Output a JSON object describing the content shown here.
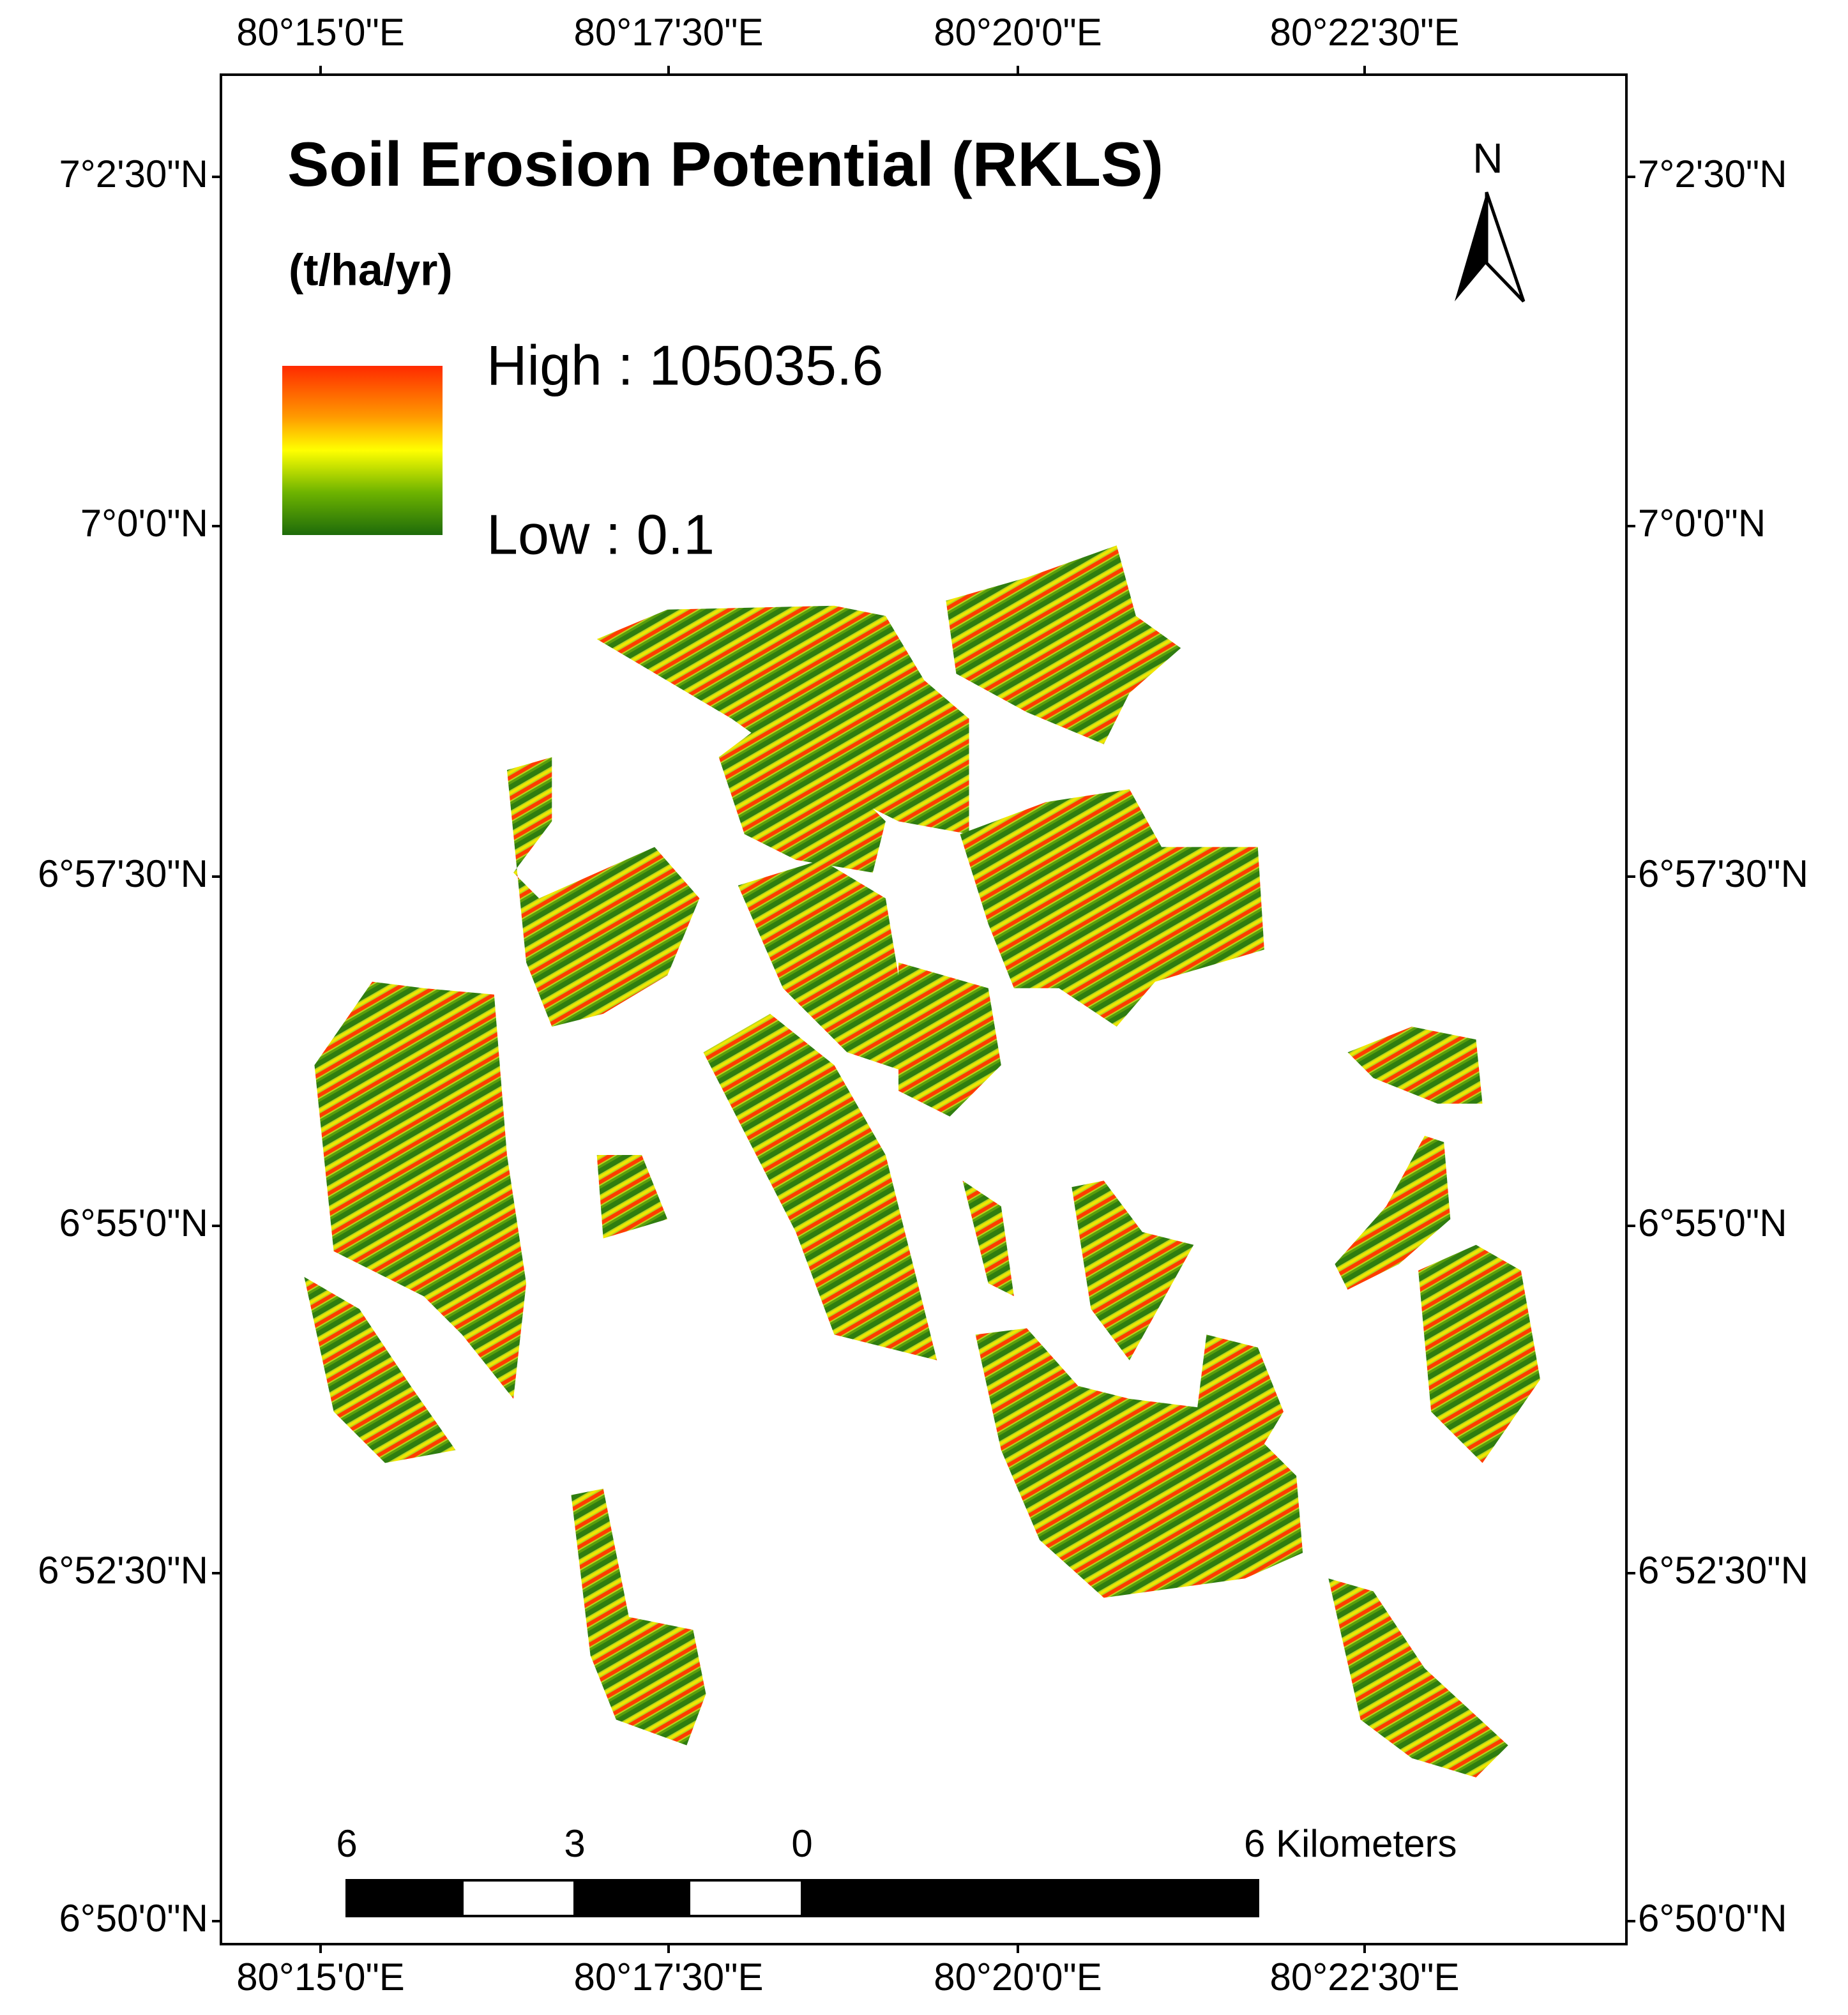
{
  "title": "Soil Erosion Potential (RKLS)",
  "subtitle": "(t/ha/yr)",
  "legend": {
    "high": "High : 105035.6",
    "low": "Low : 0.1"
  },
  "north": "N",
  "scale_bar": {
    "labels": [
      "6",
      "3",
      "0",
      "6 Kilometers"
    ]
  },
  "longitudes": [
    "80°15'0\"E",
    "80°17'30\"E",
    "80°20'0\"E",
    "80°22'30\"E"
  ],
  "latitudes": [
    "7°2'30\"N",
    "7°0'0\"N",
    "6°57'30\"N",
    "6°55'0\"N",
    "6°52'30\"N",
    "6°50'0\"N"
  ]
}
